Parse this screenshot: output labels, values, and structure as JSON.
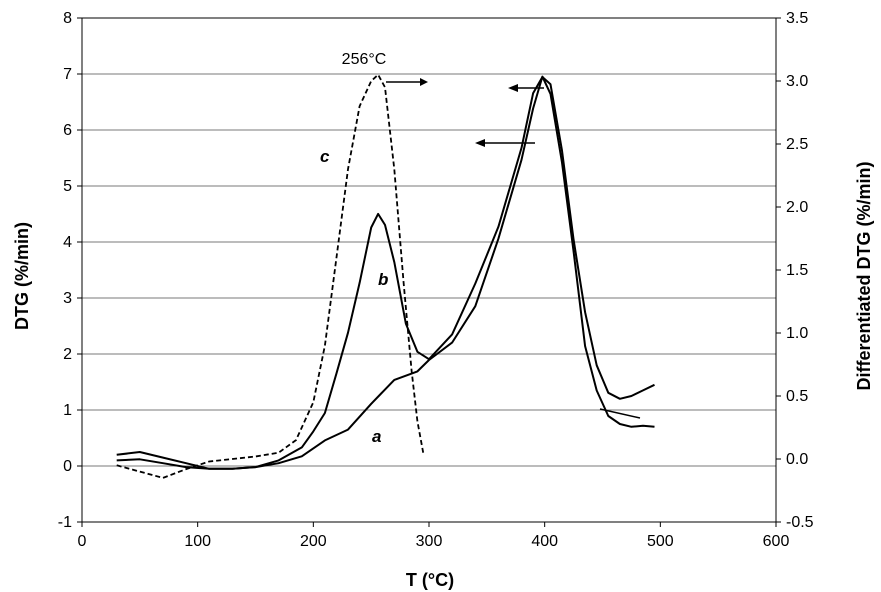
{
  "chart_data": {
    "type": "line",
    "xlabel": "T (°C)",
    "ylabel_left": "DTG (%/min)",
    "ylabel_right": "Differentiated DTG (%/min)",
    "xlim": [
      0,
      600
    ],
    "ylim_left": [
      -1,
      8
    ],
    "ylim_right": [
      -0.5,
      3.5
    ],
    "x_ticks": [
      0,
      100,
      200,
      300,
      400,
      500,
      600
    ],
    "y_ticks_left": [
      -1,
      0,
      1,
      2,
      3,
      4,
      5,
      6,
      7,
      8
    ],
    "y_ticks_right": [
      "-0.5",
      "0.0",
      "0.5",
      "1.0",
      "1.5",
      "2.0",
      "2.5",
      "3.0",
      "3.5"
    ],
    "grid": "horizontal",
    "annotation": "256°C",
    "series": [
      {
        "name": "a",
        "axis": "left",
        "style": "solid",
        "x": [
          30,
          50,
          70,
          90,
          110,
          130,
          150,
          170,
          190,
          210,
          230,
          250,
          270,
          290,
          300,
          320,
          340,
          360,
          380,
          390,
          398,
          405,
          415,
          425,
          435,
          445,
          455,
          465,
          475,
          485,
          495
        ],
        "y": [
          0.1,
          0.12,
          0.05,
          -0.02,
          -0.05,
          -0.05,
          -0.02,
          0.05,
          0.2,
          0.4,
          0.7,
          1.1,
          1.5,
          1.75,
          1.85,
          2.2,
          2.9,
          4.0,
          5.5,
          6.4,
          6.9,
          6.7,
          5.4,
          3.8,
          2.2,
          1.3,
          0.9,
          0.75,
          0.7,
          0.72,
          0.7
        ]
      },
      {
        "name": "b",
        "axis": "left",
        "style": "solid",
        "x": [
          30,
          50,
          70,
          90,
          110,
          130,
          150,
          170,
          190,
          200,
          210,
          220,
          230,
          240,
          250,
          256,
          262,
          270,
          280,
          290,
          300,
          320,
          340,
          360,
          380,
          390,
          398,
          405,
          415,
          425,
          435,
          445,
          455,
          465,
          475,
          485,
          495
        ],
        "y": [
          0.2,
          0.25,
          0.15,
          0.05,
          -0.05,
          -0.05,
          -0.02,
          0.1,
          0.3,
          0.6,
          1.0,
          1.6,
          2.4,
          3.3,
          4.2,
          4.55,
          4.3,
          3.6,
          2.6,
          2.0,
          1.9,
          2.4,
          3.2,
          4.3,
          5.7,
          6.6,
          7.0,
          6.8,
          5.6,
          4.1,
          2.7,
          1.8,
          1.35,
          1.2,
          1.25,
          1.35,
          1.45
        ]
      },
      {
        "name": "c",
        "axis": "right",
        "style": "dashed",
        "x": [
          30,
          50,
          70,
          90,
          110,
          130,
          150,
          170,
          185,
          200,
          210,
          220,
          230,
          240,
          250,
          256,
          262,
          270,
          278,
          285,
          290,
          295
        ],
        "y": [
          -0.05,
          -0.1,
          -0.15,
          -0.08,
          -0.02,
          0.0,
          0.02,
          0.05,
          0.15,
          0.45,
          0.9,
          1.6,
          2.3,
          2.8,
          3.0,
          3.05,
          2.95,
          2.3,
          1.4,
          0.7,
          0.3,
          0.05
        ]
      }
    ]
  }
}
